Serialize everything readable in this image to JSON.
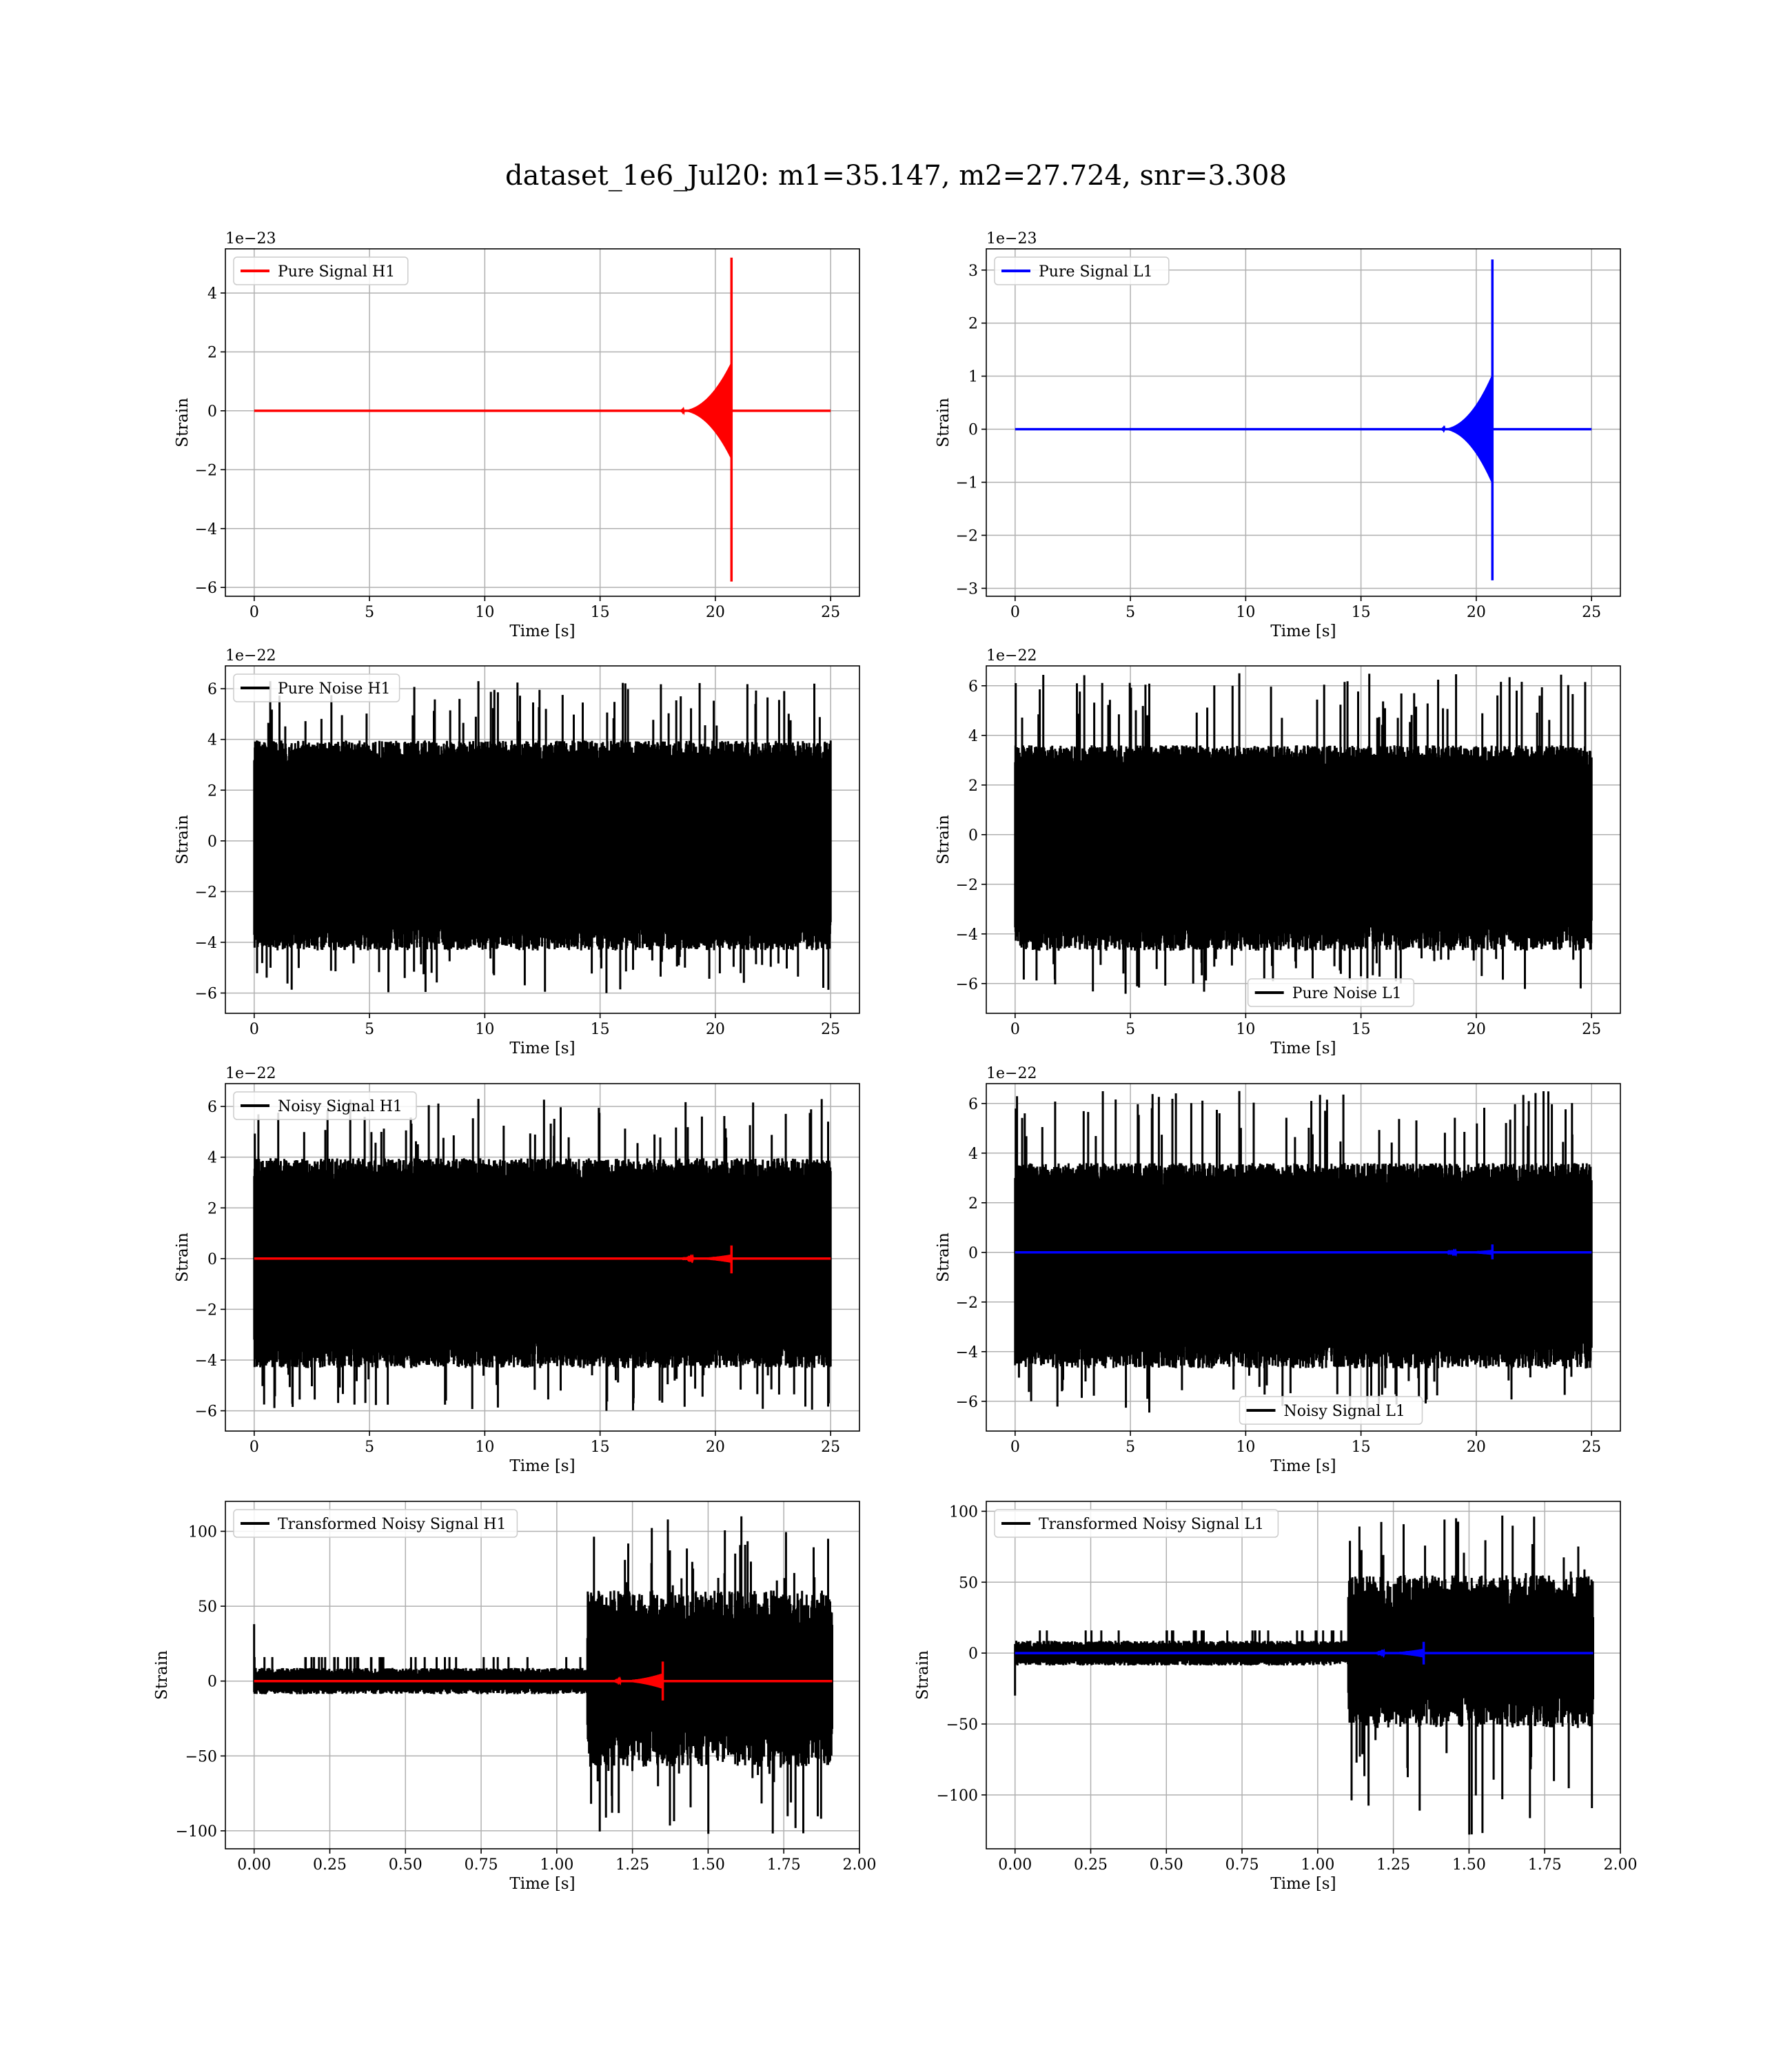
{
  "figure": {
    "title": "dataset_1e6_Jul20: m1=35.147, m2=27.724, snr=3.308"
  },
  "colors": {
    "h1_signal": "#ff0000",
    "l1_signal": "#0000ff",
    "noise": "#000000",
    "grid": "#b0b0b0"
  },
  "chart_data": [
    {
      "id": "pure-signal-h1",
      "type": "line",
      "grid": true,
      "legend_position": "upper-left",
      "xlabel": "Time [s]",
      "ylabel": "Strain",
      "offset_text": "1e−23",
      "xlim": [
        -1.25,
        26.25
      ],
      "ylim": [
        -6.3,
        5.5
      ],
      "xticks": [
        0,
        5,
        10,
        15,
        20,
        25
      ],
      "yticks": [
        -6,
        -4,
        -2,
        0,
        2,
        4
      ],
      "series": [
        {
          "name": "Pure Signal H1",
          "color": "#ff0000",
          "kind": "chirp",
          "x_range": [
            0,
            25
          ],
          "merger_time": 20.7,
          "pos_peak": 5.2,
          "neg_peak": -5.8,
          "inspiral_amp": 1.6
        }
      ]
    },
    {
      "id": "pure-signal-l1",
      "type": "line",
      "grid": true,
      "legend_position": "upper-left",
      "xlabel": "Time [s]",
      "ylabel": "Strain",
      "offset_text": "1e−23",
      "xlim": [
        -1.25,
        26.25
      ],
      "ylim": [
        -3.15,
        3.4
      ],
      "xticks": [
        0,
        5,
        10,
        15,
        20,
        25
      ],
      "yticks": [
        -3,
        -2,
        -1,
        0,
        1,
        2,
        3
      ],
      "series": [
        {
          "name": "Pure Signal L1",
          "color": "#0000ff",
          "kind": "chirp",
          "x_range": [
            0,
            25
          ],
          "merger_time": 20.7,
          "pos_peak": 3.2,
          "neg_peak": -2.85,
          "inspiral_amp": 1.0
        }
      ]
    },
    {
      "id": "pure-noise-h1",
      "type": "line",
      "grid": true,
      "legend_position": "upper-left",
      "xlabel": "Time [s]",
      "ylabel": "Strain",
      "offset_text": "1e−22",
      "xlim": [
        -1.25,
        26.25
      ],
      "ylim": [
        -6.8,
        6.9
      ],
      "xticks": [
        0,
        5,
        10,
        15,
        20,
        25
      ],
      "yticks": [
        -6,
        -4,
        -2,
        0,
        2,
        4,
        6
      ],
      "series": [
        {
          "name": "Pure Noise H1",
          "color": "#000000",
          "kind": "noise",
          "x_range": [
            0,
            25
          ],
          "band": [
            -3.6,
            3.3
          ],
          "pos_peak": 6.3,
          "neg_peak": -6.0
        }
      ]
    },
    {
      "id": "pure-noise-l1",
      "type": "line",
      "grid": true,
      "legend_position": "lower-center",
      "xlabel": "Time [s]",
      "ylabel": "Strain",
      "offset_text": "1e−22",
      "xlim": [
        -1.25,
        26.25
      ],
      "ylim": [
        -7.2,
        6.8
      ],
      "xticks": [
        0,
        5,
        10,
        15,
        20,
        25
      ],
      "yticks": [
        -6,
        -4,
        -2,
        0,
        2,
        4,
        6
      ],
      "series": [
        {
          "name": "Pure Noise L1",
          "color": "#000000",
          "kind": "noise",
          "x_range": [
            0,
            25
          ],
          "band": [
            -3.9,
            3.0
          ],
          "pos_peak": 6.5,
          "neg_peak": -6.5
        }
      ]
    },
    {
      "id": "noisy-signal-h1",
      "type": "line",
      "grid": true,
      "legend_position": "upper-left",
      "xlabel": "Time [s]",
      "ylabel": "Strain",
      "offset_text": "1e−22",
      "xlim": [
        -1.25,
        26.25
      ],
      "ylim": [
        -6.8,
        6.9
      ],
      "xticks": [
        0,
        5,
        10,
        15,
        20,
        25
      ],
      "yticks": [
        -6,
        -4,
        -2,
        0,
        2,
        4,
        6
      ],
      "series": [
        {
          "name": "Noisy Signal H1",
          "color": "#000000",
          "kind": "noise",
          "x_range": [
            0,
            25
          ],
          "band": [
            -3.6,
            3.3
          ],
          "pos_peak": 6.3,
          "neg_peak": -6.0
        },
        {
          "name": "",
          "color": "#ff0000",
          "kind": "chirp",
          "x_range": [
            0,
            25
          ],
          "merger_time": 20.7,
          "pos_peak": 0.52,
          "neg_peak": -0.58,
          "inspiral_amp": 0.16
        }
      ]
    },
    {
      "id": "noisy-signal-l1",
      "type": "line",
      "grid": true,
      "legend_position": "lower-center",
      "xlabel": "Time [s]",
      "ylabel": "Strain",
      "offset_text": "1e−22",
      "xlim": [
        -1.25,
        26.25
      ],
      "ylim": [
        -7.2,
        6.8
      ],
      "xticks": [
        0,
        5,
        10,
        15,
        20,
        25
      ],
      "yticks": [
        -6,
        -4,
        -2,
        0,
        2,
        4,
        6
      ],
      "series": [
        {
          "name": "Noisy Signal L1",
          "color": "#000000",
          "kind": "noise",
          "x_range": [
            0,
            25
          ],
          "band": [
            -3.9,
            3.0
          ],
          "pos_peak": 6.5,
          "neg_peak": -6.5
        },
        {
          "name": "",
          "color": "#0000ff",
          "kind": "chirp",
          "x_range": [
            0,
            25
          ],
          "merger_time": 20.7,
          "pos_peak": 0.32,
          "neg_peak": -0.28,
          "inspiral_amp": 0.1
        }
      ]
    },
    {
      "id": "transformed-noisy-signal-h1",
      "type": "line",
      "grid": true,
      "legend_position": "upper-left",
      "xlabel": "Time [s]",
      "ylabel": "Strain",
      "offset_text": "",
      "xlim": [
        -0.095,
        2.0
      ],
      "ylim": [
        -112,
        120
      ],
      "xticks": [
        0.0,
        0.25,
        0.5,
        0.75,
        1.0,
        1.25,
        1.5,
        1.75,
        2.0
      ],
      "xtick_labels": [
        "0.00",
        "0.25",
        "0.50",
        "0.75",
        "1.00",
        "1.25",
        "1.50",
        "1.75",
        "2.00"
      ],
      "yticks": [
        -100,
        -50,
        0,
        50,
        100
      ],
      "series": [
        {
          "name": "Transformed Noisy Signal H1",
          "color": "#000000",
          "kind": "transformed",
          "x_range": [
            0,
            1.91
          ],
          "quiet_end": 1.1,
          "quiet_band": [
            -8,
            8
          ],
          "loud_band": [
            -52,
            55
          ],
          "pos_peak": 110,
          "neg_peak": -102,
          "start_spike": 38
        },
        {
          "name": "",
          "color": "#ff0000",
          "kind": "chirp",
          "x_range": [
            0,
            1.91
          ],
          "merger_time": 1.35,
          "pos_peak": 13,
          "neg_peak": -13,
          "inspiral_amp": 5
        }
      ]
    },
    {
      "id": "transformed-noisy-signal-l1",
      "type": "line",
      "grid": true,
      "legend_position": "upper-left",
      "xlabel": "Time [s]",
      "ylabel": "Strain",
      "offset_text": "",
      "xlim": [
        -0.095,
        2.0
      ],
      "ylim": [
        -138,
        107
      ],
      "xticks": [
        0.0,
        0.25,
        0.5,
        0.75,
        1.0,
        1.25,
        1.5,
        1.75,
        2.0
      ],
      "xtick_labels": [
        "0.00",
        "0.25",
        "0.50",
        "0.75",
        "1.00",
        "1.25",
        "1.50",
        "1.75",
        "2.00"
      ],
      "yticks": [
        -100,
        -50,
        0,
        50,
        100
      ],
      "series": [
        {
          "name": "Transformed Noisy Signal L1",
          "color": "#000000",
          "kind": "transformed",
          "x_range": [
            0,
            1.91
          ],
          "quiet_end": 1.1,
          "quiet_band": [
            -8,
            8
          ],
          "loud_band": [
            -48,
            50
          ],
          "pos_peak": 97,
          "neg_peak": -128,
          "start_spike": -30
        },
        {
          "name": "",
          "color": "#0000ff",
          "kind": "chirp",
          "x_range": [
            0,
            1.91
          ],
          "merger_time": 1.35,
          "pos_peak": 8,
          "neg_peak": -8,
          "inspiral_amp": 3
        }
      ]
    }
  ]
}
